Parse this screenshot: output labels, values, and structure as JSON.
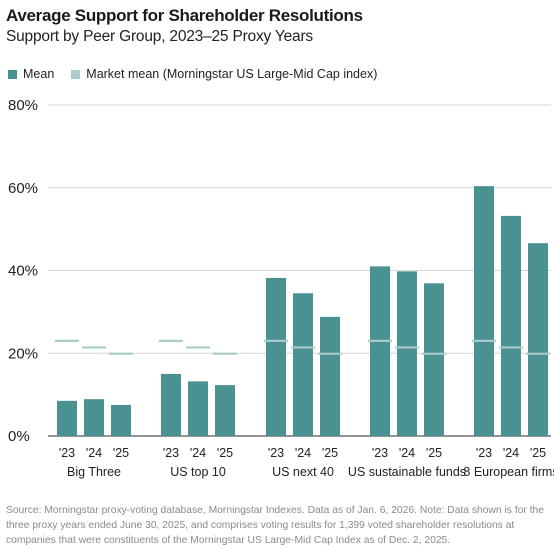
{
  "chart_data": {
    "type": "bar",
    "title": "Average Support for Shareholder Resolutions",
    "subtitle": "Support by Peer Group, 2023–25 Proxy Years",
    "groups": [
      "Big Three",
      "US top 10",
      "US next 40",
      "US sustainable funds",
      "8 European firms"
    ],
    "years": [
      "'23",
      "'24",
      "'25"
    ],
    "series": [
      {
        "name": "Mean",
        "color": "#4a9291",
        "values": [
          [
            8.5,
            8.9,
            7.5
          ],
          [
            15.0,
            13.2,
            12.3
          ],
          [
            38.2,
            34.5,
            28.8
          ],
          [
            41.0,
            39.8,
            36.9
          ],
          [
            60.4,
            53.2,
            46.6
          ]
        ]
      },
      {
        "name": "Market mean (Morningstar US Large-Mid Cap index)",
        "color": "#a9cbcb",
        "values": [
          23.0,
          21.4,
          19.9
        ]
      }
    ],
    "ylim": [
      0,
      80
    ],
    "yticks": [
      0,
      20,
      40,
      60,
      80
    ],
    "ytick_labels": [
      "0%",
      "20%",
      "40%",
      "60%",
      "80%"
    ],
    "grid": true,
    "legend_position": "top-left"
  },
  "legend": {
    "mean_label": "Mean",
    "market_label": "Market mean (Morningstar US Large-Mid Cap index)"
  },
  "source": "Source: Morningstar proxy-voting database, Morningstar Indexes. Data as of Jan. 6, 2026. Note: Data shown is for the three proxy years ended June 30, 2025, and comprises voting results for 1,399 voted shareholder resolutions at companies that were constituents of the Morningstar US Large-Mid Cap Index as of Dec. 2, 2025.",
  "colors": {
    "bar": "#4a9291",
    "market": "#a9cbcb",
    "grid": "#d6d6d6",
    "axis": "#555555"
  }
}
